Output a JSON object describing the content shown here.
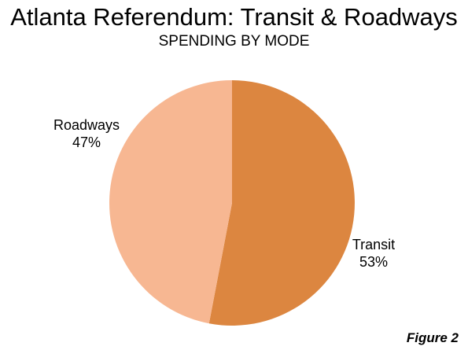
{
  "chart_data": {
    "type": "pie",
    "title": "Atlanta Referendum: Transit & Roadways",
    "subtitle": "SPENDING BY MODE",
    "slices": [
      {
        "label": "Transit",
        "value": 53,
        "display": "53%",
        "color": "#dc8640"
      },
      {
        "label": "Roadways",
        "value": 47,
        "display": "47%",
        "color": "#f7b792"
      }
    ],
    "start": "12 o'clock",
    "direction": "clockwise",
    "legend": "none",
    "figure_label": "Figure 2"
  }
}
